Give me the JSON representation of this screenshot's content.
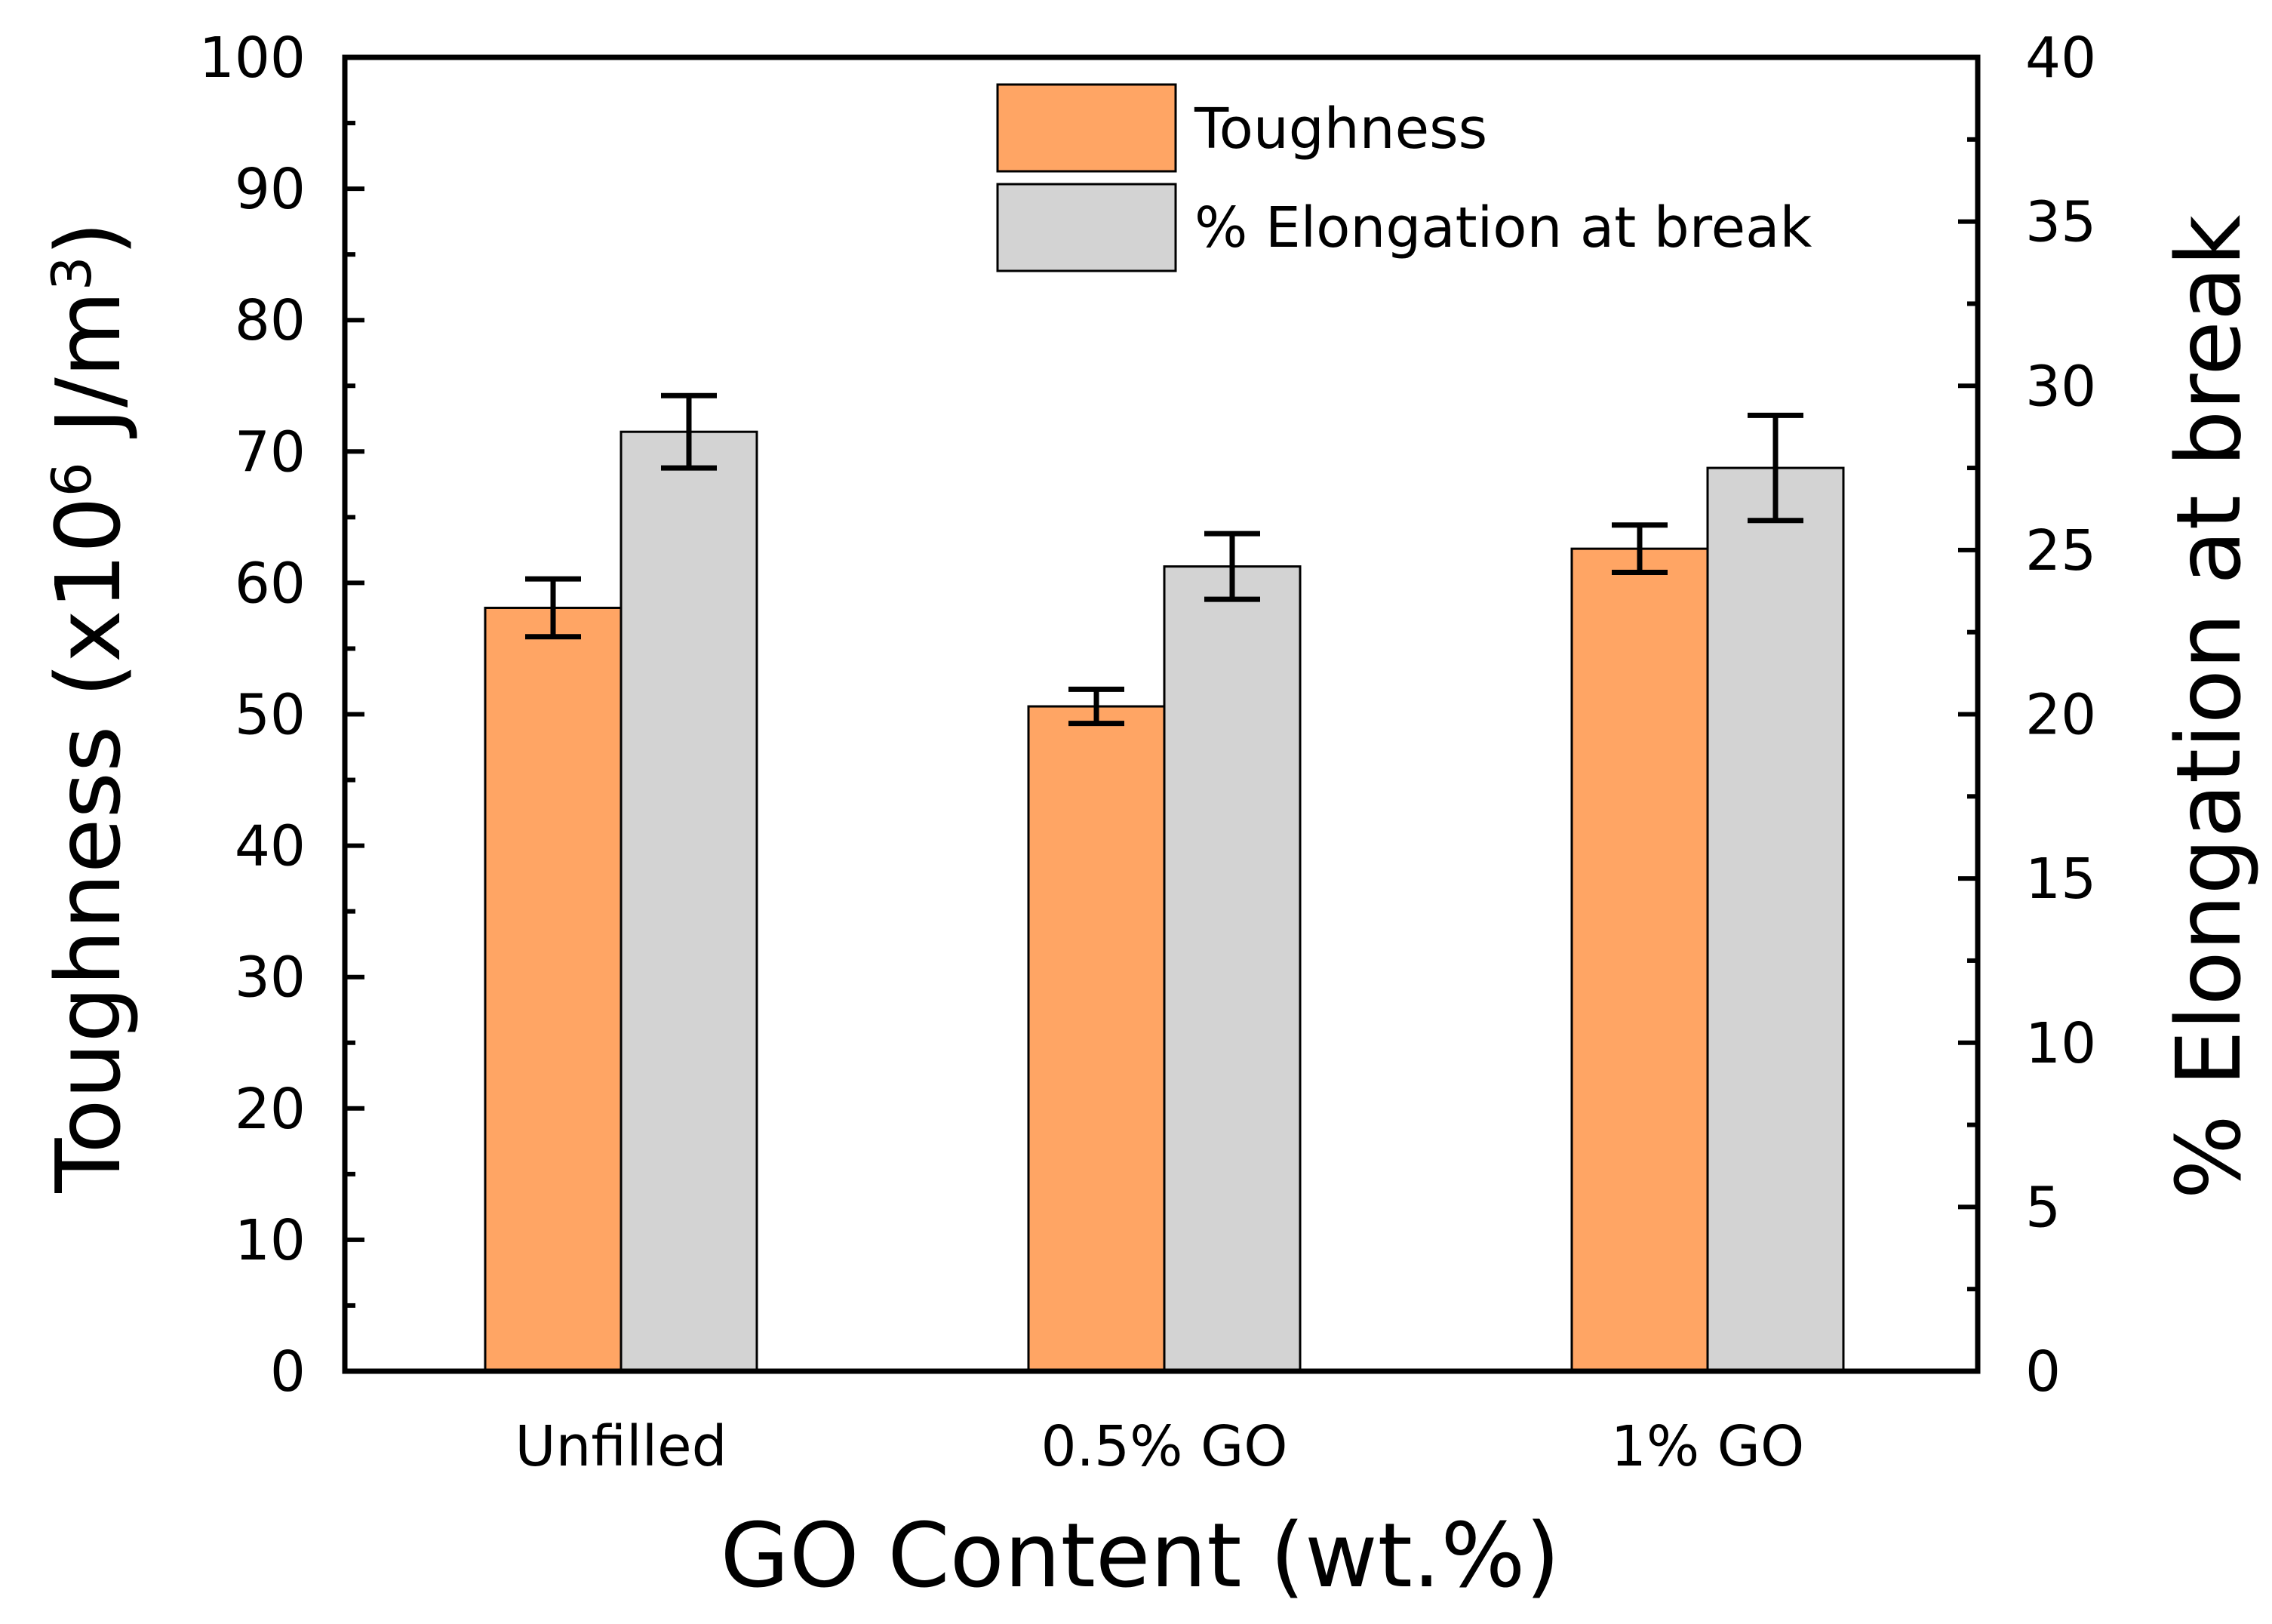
{
  "chart_data": {
    "type": "bar",
    "categories": [
      "Unfilled",
      "0.5% GO",
      "1% GO"
    ],
    "series": [
      {
        "name": "Toughness",
        "axis": "left",
        "values": [
          58.1,
          50.6,
          62.6
        ],
        "errors": [
          2.2,
          1.3,
          1.8
        ],
        "color": "#FFA564"
      },
      {
        "name": "% Elongation at break",
        "axis": "right",
        "values": [
          28.6,
          24.5,
          27.5
        ],
        "errors": [
          1.1,
          1.0,
          1.6
        ],
        "color": "#D3D3D3"
      }
    ],
    "xlabel": "GO Content (wt.%)",
    "ylabel": {
      "prefix": "Toughness (x10",
      "exp": "6",
      "mid": " J/m",
      "exp2": "3",
      "suffix": ")"
    },
    "y2label": "% Elongation at break",
    "ylim": [
      0,
      100
    ],
    "y2lim": [
      0,
      40
    ],
    "yticks": [
      0,
      10,
      20,
      30,
      40,
      50,
      60,
      70,
      80,
      90,
      100
    ],
    "y2ticks": [
      0,
      5,
      10,
      15,
      20,
      25,
      30,
      35,
      40
    ],
    "legend": "top-center"
  }
}
